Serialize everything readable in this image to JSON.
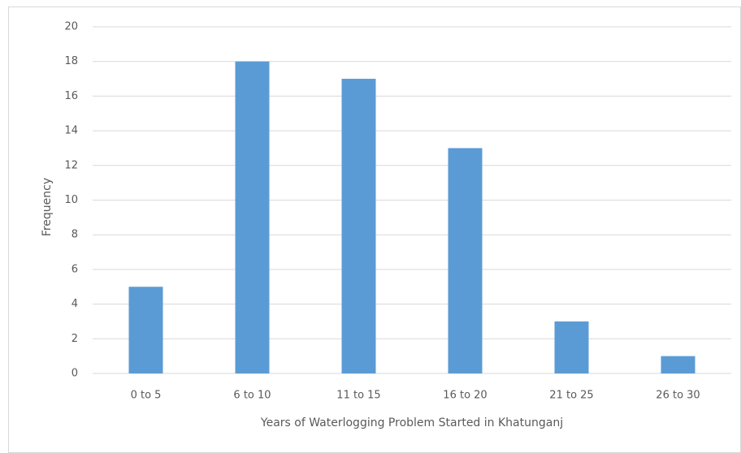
{
  "chart_data": {
    "type": "bar",
    "x_label": "Years of Waterlogging Problem Started  in Khatunganj",
    "y_label": "Frequency",
    "categories": [
      "0 to 5",
      "6 to 10",
      "11 to 15",
      "16 to 20",
      "21 to 25",
      "26 to 30"
    ],
    "values": [
      5,
      18,
      17,
      13,
      3,
      1
    ],
    "color": "#5b9bd5",
    "ylim": [
      0,
      20
    ],
    "yticks": [
      0,
      2,
      4,
      6,
      8,
      10,
      12,
      14,
      16,
      18,
      20
    ],
    "grid": true
  }
}
